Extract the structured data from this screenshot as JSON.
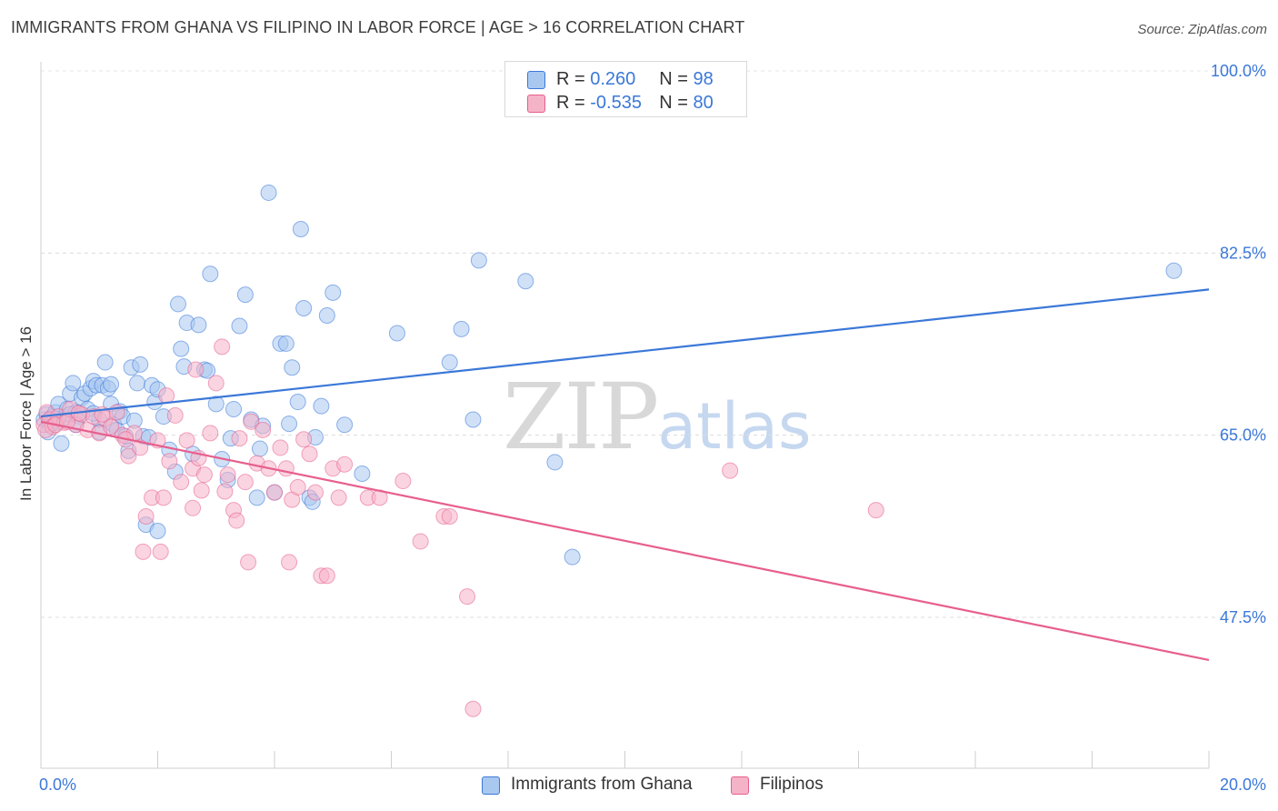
{
  "header": {
    "title": "IMMIGRANTS FROM GHANA VS FILIPINO IN LABOR FORCE | AGE > 16 CORRELATION CHART",
    "source": "Source: ZipAtlas.com"
  },
  "watermark": {
    "zip": "ZIP",
    "atlas": "atlas"
  },
  "legend_top": {
    "rows": [
      {
        "r_label": "R = ",
        "r_value": "0.260",
        "n_label": "N = ",
        "n_value": "98",
        "color": "#a9c8f0"
      },
      {
        "r_label": "R = ",
        "r_value": "-0.535",
        "n_label": "N = ",
        "n_value": "80",
        "color": "#f5b3c8"
      }
    ]
  },
  "legend_bottom": {
    "items": [
      {
        "label": "Immigrants from Ghana",
        "color": "#a9c8f0"
      },
      {
        "label": "Filipinos",
        "color": "#f5b3c8"
      }
    ]
  },
  "chart_data": {
    "type": "scatter",
    "title": "IMMIGRANTS FROM GHANA VS FILIPINO IN LABOR FORCE | AGE > 16 CORRELATION CHART",
    "xlabel": "",
    "ylabel": "In Labor Force | Age > 16",
    "xlim": [
      0,
      20
    ],
    "ylim": [
      33,
      100
    ],
    "x_tick_labels": [
      "0.0%",
      "20.0%"
    ],
    "y_ticks": [
      47.5,
      65.0,
      82.5,
      100.0
    ],
    "y_tick_labels": [
      "47.5%",
      "65.0%",
      "82.5%",
      "100.0%"
    ],
    "grid": true,
    "legend_placement": "top-center and bottom",
    "series": [
      {
        "name": "Immigrants from Ghana",
        "color": "#3b78d8",
        "fill": "#a9c8f0",
        "trend": {
          "x": [
            0,
            20
          ],
          "y": [
            66.8,
            79.0
          ]
        },
        "points": [
          [
            0.05,
            66.5
          ],
          [
            0.1,
            67.0
          ],
          [
            0.15,
            66.0
          ],
          [
            0.2,
            66.8
          ],
          [
            0.25,
            67.2
          ],
          [
            0.3,
            68.0
          ],
          [
            0.35,
            64.2
          ],
          [
            0.4,
            66.7
          ],
          [
            0.45,
            67.5
          ],
          [
            0.5,
            69.0
          ],
          [
            0.55,
            70.0
          ],
          [
            0.6,
            67.2
          ],
          [
            0.65,
            66.8
          ],
          [
            0.7,
            68.6
          ],
          [
            0.75,
            69.0
          ],
          [
            0.8,
            67.5
          ],
          [
            0.85,
            69.5
          ],
          [
            0.9,
            70.2
          ],
          [
            0.95,
            69.8
          ],
          [
            1.0,
            66.5
          ],
          [
            1.05,
            69.8
          ],
          [
            1.1,
            72.0
          ],
          [
            1.15,
            69.5
          ],
          [
            1.2,
            68.0
          ],
          [
            1.25,
            66.0
          ],
          [
            1.3,
            65.5
          ],
          [
            1.35,
            67.3
          ],
          [
            1.4,
            66.8
          ],
          [
            1.5,
            63.5
          ],
          [
            1.55,
            71.5
          ],
          [
            1.65,
            70.0
          ],
          [
            1.7,
            71.8
          ],
          [
            1.75,
            64.9
          ],
          [
            1.8,
            56.4
          ],
          [
            1.85,
            64.8
          ],
          [
            1.9,
            69.8
          ],
          [
            1.95,
            68.2
          ],
          [
            2.0,
            55.8
          ],
          [
            2.1,
            66.8
          ],
          [
            2.2,
            63.6
          ],
          [
            2.3,
            61.5
          ],
          [
            2.35,
            77.6
          ],
          [
            2.4,
            73.3
          ],
          [
            2.5,
            75.8
          ],
          [
            2.6,
            63.2
          ],
          [
            2.7,
            75.6
          ],
          [
            2.8,
            71.3
          ],
          [
            2.9,
            80.5
          ],
          [
            3.0,
            68.0
          ],
          [
            3.1,
            62.7
          ],
          [
            3.2,
            60.7
          ],
          [
            3.3,
            67.5
          ],
          [
            3.4,
            75.5
          ],
          [
            3.5,
            78.5
          ],
          [
            3.6,
            66.5
          ],
          [
            3.7,
            59.0
          ],
          [
            3.8,
            65.9
          ],
          [
            3.9,
            88.3
          ],
          [
            4.0,
            59.5
          ],
          [
            4.1,
            73.8
          ],
          [
            4.2,
            73.8
          ],
          [
            4.3,
            71.5
          ],
          [
            4.4,
            68.2
          ],
          [
            4.45,
            84.8
          ],
          [
            4.5,
            77.2
          ],
          [
            4.6,
            59.0
          ],
          [
            4.7,
            64.8
          ],
          [
            4.8,
            67.8
          ],
          [
            4.9,
            76.5
          ],
          [
            5.0,
            78.7
          ],
          [
            5.2,
            66.0
          ],
          [
            5.5,
            61.3
          ],
          [
            6.1,
            74.8
          ],
          [
            7.0,
            72.0
          ],
          [
            7.2,
            75.2
          ],
          [
            7.4,
            66.5
          ],
          [
            7.5,
            81.8
          ],
          [
            8.3,
            79.8
          ],
          [
            8.8,
            62.4
          ],
          [
            9.1,
            53.3
          ],
          [
            19.4,
            80.8
          ],
          [
            0.12,
            65.3
          ],
          [
            0.28,
            66.2
          ],
          [
            0.6,
            66.0
          ],
          [
            0.9,
            67.1
          ],
          [
            1.0,
            65.3
          ],
          [
            1.45,
            64.9
          ],
          [
            1.6,
            66.4
          ],
          [
            2.0,
            69.4
          ],
          [
            2.45,
            71.6
          ],
          [
            2.85,
            71.2
          ],
          [
            3.25,
            64.7
          ],
          [
            3.75,
            63.7
          ],
          [
            4.25,
            66.1
          ],
          [
            4.65,
            58.6
          ],
          [
            0.2,
            66.2
          ],
          [
            0.5,
            67.0
          ],
          [
            1.2,
            69.9
          ]
        ]
      },
      {
        "name": "Filipinos",
        "color": "#e75f8d",
        "fill": "#f5b3c8",
        "trend": {
          "x": [
            0,
            20
          ],
          "y": [
            66.3,
            43.4
          ]
        },
        "points": [
          [
            0.05,
            66.0
          ],
          [
            0.1,
            67.2
          ],
          [
            0.15,
            66.5
          ],
          [
            0.2,
            65.8
          ],
          [
            0.3,
            66.8
          ],
          [
            0.4,
            66.2
          ],
          [
            0.5,
            67.5
          ],
          [
            0.6,
            66.0
          ],
          [
            0.7,
            67.0
          ],
          [
            0.8,
            65.5
          ],
          [
            0.9,
            66.8
          ],
          [
            1.0,
            65.2
          ],
          [
            1.1,
            66.6
          ],
          [
            1.2,
            65.8
          ],
          [
            1.3,
            67.2
          ],
          [
            1.4,
            65.0
          ],
          [
            1.5,
            63.0
          ],
          [
            1.6,
            65.2
          ],
          [
            1.7,
            63.8
          ],
          [
            1.75,
            53.8
          ],
          [
            1.8,
            57.2
          ],
          [
            1.9,
            59.0
          ],
          [
            2.0,
            64.5
          ],
          [
            2.05,
            53.8
          ],
          [
            2.1,
            59.0
          ],
          [
            2.2,
            62.5
          ],
          [
            2.3,
            66.9
          ],
          [
            2.4,
            60.5
          ],
          [
            2.5,
            64.5
          ],
          [
            2.6,
            61.8
          ],
          [
            2.65,
            71.3
          ],
          [
            2.7,
            62.8
          ],
          [
            2.75,
            59.7
          ],
          [
            2.8,
            61.2
          ],
          [
            2.9,
            65.2
          ],
          [
            3.0,
            70.0
          ],
          [
            3.1,
            73.5
          ],
          [
            3.15,
            59.6
          ],
          [
            3.2,
            61.2
          ],
          [
            3.3,
            57.8
          ],
          [
            3.35,
            56.8
          ],
          [
            3.4,
            64.7
          ],
          [
            3.5,
            60.5
          ],
          [
            3.55,
            52.8
          ],
          [
            3.6,
            66.3
          ],
          [
            3.7,
            62.3
          ],
          [
            3.8,
            65.5
          ],
          [
            3.9,
            61.8
          ],
          [
            4.0,
            59.5
          ],
          [
            4.1,
            63.8
          ],
          [
            4.2,
            61.8
          ],
          [
            4.3,
            58.8
          ],
          [
            4.4,
            60.0
          ],
          [
            4.5,
            64.6
          ],
          [
            4.6,
            63.2
          ],
          [
            4.7,
            59.5
          ],
          [
            4.8,
            51.5
          ],
          [
            4.9,
            51.5
          ],
          [
            5.0,
            61.8
          ],
          [
            5.1,
            59.0
          ],
          [
            5.2,
            62.2
          ],
          [
            5.6,
            59.0
          ],
          [
            5.8,
            59.0
          ],
          [
            6.2,
            60.6
          ],
          [
            6.5,
            54.8
          ],
          [
            6.9,
            57.2
          ],
          [
            7.0,
            57.2
          ],
          [
            7.3,
            49.5
          ],
          [
            7.4,
            38.7
          ],
          [
            14.3,
            57.8
          ],
          [
            11.8,
            61.6
          ],
          [
            0.08,
            65.5
          ],
          [
            0.25,
            66.0
          ],
          [
            0.45,
            66.3
          ],
          [
            0.65,
            67.1
          ],
          [
            1.05,
            67.0
          ],
          [
            1.45,
            64.6
          ],
          [
            2.15,
            68.8
          ],
          [
            2.6,
            58.0
          ],
          [
            4.25,
            52.8
          ]
        ]
      }
    ]
  }
}
